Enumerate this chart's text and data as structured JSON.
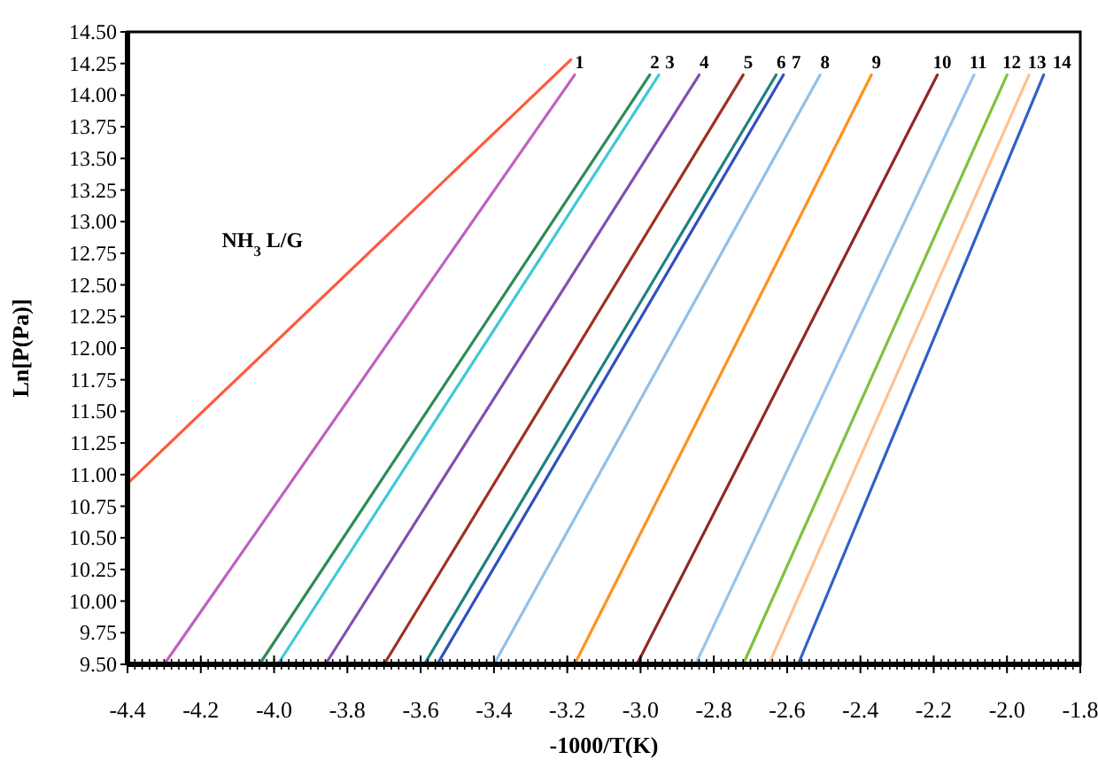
{
  "chart_data": {
    "type": "line",
    "xlabel": "-1000/T(K)",
    "ylabel": "Ln[P(Pa)]",
    "xlim": [
      -4.4,
      -1.8
    ],
    "xticks": [
      {
        "value": -4.4,
        "label": "-4.4"
      },
      {
        "value": -4.2,
        "label": "-4.2"
      },
      {
        "value": -4.0,
        "label": "-4.0"
      },
      {
        "value": -3.8,
        "label": "-3.8"
      },
      {
        "value": -3.6,
        "label": "-3.6"
      },
      {
        "value": -3.4,
        "label": "-3.4"
      },
      {
        "value": -3.2,
        "label": "-3.2"
      },
      {
        "value": -3.0,
        "label": "-3.0"
      },
      {
        "value": -2.8,
        "label": "-2.8"
      },
      {
        "value": -2.6,
        "label": "-2.6"
      },
      {
        "value": -2.4,
        "label": "-2.4"
      },
      {
        "value": -2.2,
        "label": "-2.2"
      },
      {
        "value": -2.0,
        "label": "-2.0"
      },
      {
        "value": -1.8,
        "label": "-1.8"
      }
    ],
    "ylim": [
      9.5,
      14.5
    ],
    "yticks": [
      {
        "value": 9.5,
        "label": "9.50"
      },
      {
        "value": 9.75,
        "label": "9.75"
      },
      {
        "value": 10,
        "label": "10.00"
      },
      {
        "value": 10.25,
        "label": "10.25"
      },
      {
        "value": 10.5,
        "label": "10.50"
      },
      {
        "value": 10.75,
        "label": "10.75"
      },
      {
        "value": 11,
        "label": "11.00"
      },
      {
        "value": 11.25,
        "label": "11.25"
      },
      {
        "value": 11.5,
        "label": "11.50"
      },
      {
        "value": 11.75,
        "label": "11.75"
      },
      {
        "value": 12,
        "label": "12.00"
      },
      {
        "value": 12.25,
        "label": "12.25"
      },
      {
        "value": 12.5,
        "label": "12.50"
      },
      {
        "value": 12.75,
        "label": "12.75"
      },
      {
        "value": 13,
        "label": "13.00"
      },
      {
        "value": 13.25,
        "label": "13.25"
      },
      {
        "value": 13.5,
        "label": "13.50"
      },
      {
        "value": 13.75,
        "label": "13.75"
      },
      {
        "value": 14,
        "label": "14.00"
      },
      {
        "value": 14.25,
        "label": "14.25"
      },
      {
        "value": 14.5,
        "label": "14.50"
      }
    ],
    "grid": false,
    "marker": "none",
    "line_style": "solid",
    "series": [
      {
        "name": "NH$_{3}$ L/G",
        "color": "#ff5a40",
        "x": [
          -4.4,
          -3.19
        ],
        "values": [
          10.93,
          14.28
        ]
      },
      {
        "name": "1",
        "color": "#c060c0",
        "x": [
          -4.3,
          -3.18
        ],
        "values": [
          9.5,
          14.16
        ]
      },
      {
        "name": "2",
        "color": "#2e8b57",
        "x": [
          -4.04,
          -2.975
        ],
        "values": [
          9.5,
          14.16
        ]
      },
      {
        "name": "3",
        "color": "#40c8d8",
        "x": [
          -3.99,
          -2.95
        ],
        "values": [
          9.5,
          14.16
        ]
      },
      {
        "name": "4",
        "color": "#8050b0",
        "x": [
          -3.86,
          -2.84
        ],
        "values": [
          9.5,
          14.16
        ]
      },
      {
        "name": "5",
        "color": "#a03020",
        "x": [
          -3.7,
          -2.72
        ],
        "values": [
          9.5,
          14.16
        ]
      },
      {
        "name": "6",
        "color": "#208080",
        "x": [
          -3.59,
          -2.63
        ],
        "values": [
          9.5,
          14.16
        ]
      },
      {
        "name": "7",
        "color": "#3050c0",
        "x": [
          -3.555,
          -2.61
        ],
        "values": [
          9.5,
          14.16
        ]
      },
      {
        "name": "8",
        "color": "#90c0e8",
        "x": [
          -3.4,
          -2.51
        ],
        "values": [
          9.5,
          14.16
        ]
      },
      {
        "name": "9",
        "color": "#ff9020",
        "x": [
          -3.18,
          -2.37
        ],
        "values": [
          9.5,
          14.16
        ]
      },
      {
        "name": "10",
        "color": "#902828",
        "x": [
          -3.01,
          -2.19
        ],
        "values": [
          9.5,
          14.16
        ]
      },
      {
        "name": "11",
        "color": "#98c4ec",
        "x": [
          -2.85,
          -2.09
        ],
        "values": [
          9.5,
          14.16
        ]
      },
      {
        "name": "12",
        "color": "#80c040",
        "x": [
          -2.72,
          -2.0
        ],
        "values": [
          9.5,
          14.16
        ]
      },
      {
        "name": "13",
        "color": "#ffc090",
        "x": [
          -2.65,
          -1.94
        ],
        "values": [
          9.5,
          14.16
        ]
      },
      {
        "name": "14",
        "color": "#3060c8",
        "x": [
          -2.57,
          -1.9
        ],
        "values": [
          9.5,
          14.16
        ]
      }
    ]
  }
}
